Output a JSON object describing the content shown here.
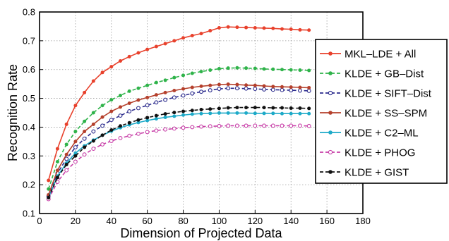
{
  "chart_data": {
    "type": "line",
    "xlabel": "Dimension of Projected Data",
    "ylabel": "Recognition Rate",
    "xlim": [
      0,
      180
    ],
    "ylim": [
      0.1,
      0.8
    ],
    "xticks": [
      0,
      20,
      40,
      60,
      80,
      100,
      120,
      140,
      160,
      180
    ],
    "yticks": [
      0.1,
      0.2,
      0.3,
      0.4,
      0.5,
      0.6,
      0.7,
      0.8
    ],
    "grid": true,
    "legend_position": "right",
    "x": [
      5,
      10,
      15,
      20,
      25,
      30,
      35,
      40,
      45,
      50,
      55,
      60,
      65,
      70,
      75,
      80,
      85,
      90,
      95,
      100,
      105,
      110,
      115,
      120,
      125,
      130,
      135,
      140,
      145,
      150
    ],
    "series": [
      {
        "name": "MKL–LDE + All",
        "color": "#e8412c",
        "line": "solid",
        "marker": "dot",
        "values": [
          0.215,
          0.325,
          0.41,
          0.475,
          0.52,
          0.56,
          0.59,
          0.61,
          0.63,
          0.645,
          0.658,
          0.67,
          0.68,
          0.69,
          0.7,
          0.71,
          0.718,
          0.725,
          0.735,
          0.745,
          0.748,
          0.747,
          0.746,
          0.745,
          0.744,
          0.743,
          0.741,
          0.74,
          0.738,
          0.737
        ]
      },
      {
        "name": "KLDE + GB–Dist",
        "color": "#2fb34a",
        "line": "dashed",
        "marker": "dot",
        "values": [
          0.185,
          0.28,
          0.34,
          0.385,
          0.42,
          0.45,
          0.475,
          0.495,
          0.51,
          0.525,
          0.535,
          0.545,
          0.555,
          0.563,
          0.572,
          0.58,
          0.587,
          0.593,
          0.598,
          0.603,
          0.605,
          0.606,
          0.605,
          0.604,
          0.602,
          0.601,
          0.6,
          0.599,
          0.598,
          0.597
        ]
      },
      {
        "name": "KLDE + SIFT–Dist",
        "color": "#2a2a8c",
        "line": "dashed",
        "marker": "circle",
        "values": [
          0.16,
          0.24,
          0.29,
          0.33,
          0.36,
          0.385,
          0.405,
          0.425,
          0.44,
          0.455,
          0.466,
          0.476,
          0.486,
          0.495,
          0.503,
          0.51,
          0.517,
          0.523,
          0.528,
          0.533,
          0.535,
          0.535,
          0.534,
          0.533,
          0.531,
          0.53,
          0.529,
          0.528,
          0.527,
          0.526
        ]
      },
      {
        "name": "KLDE + SS–SPM",
        "color": "#b5402c",
        "line": "solid",
        "marker": "dot",
        "values": [
          0.165,
          0.25,
          0.305,
          0.35,
          0.385,
          0.41,
          0.435,
          0.455,
          0.47,
          0.483,
          0.494,
          0.503,
          0.512,
          0.52,
          0.527,
          0.533,
          0.538,
          0.542,
          0.545,
          0.548,
          0.549,
          0.548,
          0.546,
          0.545,
          0.543,
          0.541,
          0.54,
          0.539,
          0.538,
          0.537
        ]
      },
      {
        "name": "KLDE + C2–ML",
        "color": "#1eaac8",
        "line": "solid",
        "marker": "dot",
        "values": [
          0.155,
          0.23,
          0.275,
          0.31,
          0.335,
          0.355,
          0.372,
          0.386,
          0.398,
          0.408,
          0.416,
          0.423,
          0.429,
          0.434,
          0.438,
          0.442,
          0.445,
          0.447,
          0.448,
          0.449,
          0.449,
          0.449,
          0.449,
          0.448,
          0.448,
          0.448,
          0.447,
          0.447,
          0.447,
          0.447
        ]
      },
      {
        "name": "KLDE + PHOG",
        "color": "#c83fa8",
        "line": "dashed",
        "marker": "circle",
        "values": [
          0.15,
          0.21,
          0.25,
          0.28,
          0.305,
          0.325,
          0.34,
          0.352,
          0.362,
          0.37,
          0.377,
          0.383,
          0.388,
          0.392,
          0.395,
          0.398,
          0.4,
          0.402,
          0.403,
          0.404,
          0.405,
          0.405,
          0.405,
          0.405,
          0.405,
          0.405,
          0.405,
          0.405,
          0.405,
          0.404
        ]
      },
      {
        "name": "KLDE + GIST",
        "color": "#111111",
        "line": "dashed",
        "marker": "dot",
        "values": [
          0.155,
          0.225,
          0.27,
          0.3,
          0.33,
          0.352,
          0.372,
          0.39,
          0.404,
          0.415,
          0.425,
          0.433,
          0.44,
          0.446,
          0.451,
          0.455,
          0.458,
          0.461,
          0.463,
          0.465,
          0.467,
          0.468,
          0.468,
          0.468,
          0.468,
          0.467,
          0.467,
          0.466,
          0.466,
          0.465
        ]
      }
    ]
  }
}
